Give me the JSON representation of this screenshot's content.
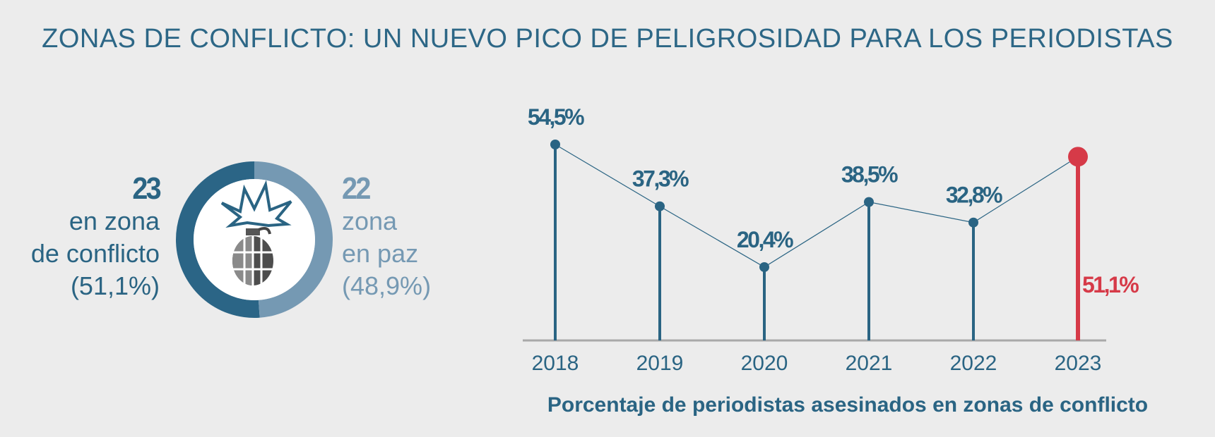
{
  "title": "ZONAS DE CONFLICTO: UN NUEVO PICO DE PELIGROSIDAD PARA LOS PERIODISTAS",
  "donut": {
    "icon": "grenade-explosion-icon",
    "conflict": {
      "count": "23",
      "line1": "en zona",
      "line2": "de conflicto",
      "pct": "(51,1%)",
      "value": 51.1,
      "color": "#2b6586"
    },
    "peace": {
      "count": "22",
      "line1": "zona",
      "line2": "en paz",
      "pct": "(48,9%)",
      "value": 48.9,
      "color": "#7599b3"
    }
  },
  "chart_data": {
    "type": "line",
    "x": [
      "2018",
      "2019",
      "2020",
      "2021",
      "2022",
      "2023"
    ],
    "values": [
      54.5,
      37.3,
      20.4,
      38.5,
      32.8,
      51.1
    ],
    "value_labels": [
      "54,5%",
      "37,3%",
      "20,4%",
      "38,5%",
      "32,8%",
      "51,1%"
    ],
    "highlight_index": 5,
    "title": "Porcentaje de periodistas asesinados en zonas de conflicto",
    "xlabel": "",
    "ylabel": "",
    "ylim": [
      0,
      60
    ],
    "grid": false,
    "colors": {
      "series": "#2a6483",
      "highlight": "#d63a48",
      "axis": "#a9a9a9"
    }
  }
}
